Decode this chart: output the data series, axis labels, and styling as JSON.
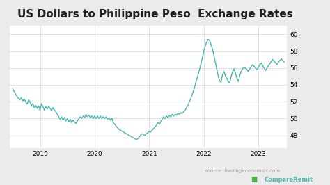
{
  "title": "US Dollars to Philippine Peso  Exchange Rates",
  "title_fontsize": 11,
  "background_color": "#ebebeb",
  "plot_bg_color": "#ffffff",
  "line_color": "#4ab5b0",
  "line_width": 1.0,
  "ylim": [
    46.5,
    61
  ],
  "yticks": [
    48,
    50,
    52,
    54,
    56,
    58,
    60
  ],
  "source_text": "source: tradingeconomics.com",
  "x_labels": [
    "2019",
    "2020",
    "2021",
    "2022",
    "2023"
  ],
  "data_points": [
    53.5,
    53.2,
    52.9,
    52.6,
    52.4,
    52.2,
    52.5,
    52.1,
    52.3,
    52.0,
    51.7,
    52.2,
    52.0,
    51.5,
    51.8,
    51.3,
    51.6,
    51.2,
    51.5,
    51.0,
    51.8,
    51.4,
    51.0,
    51.4,
    51.1,
    51.5,
    51.2,
    50.9,
    51.3,
    51.0,
    50.8,
    50.5,
    50.2,
    49.9,
    50.2,
    49.8,
    50.1,
    49.7,
    50.0,
    49.6,
    49.9,
    49.5,
    49.8,
    49.6,
    49.4,
    49.7,
    50.0,
    50.2,
    50.0,
    50.3,
    50.1,
    50.5,
    50.2,
    50.4,
    50.1,
    50.3,
    50.0,
    50.3,
    50.0,
    50.3,
    50.0,
    50.3,
    50.0,
    50.2,
    50.0,
    50.2,
    49.9,
    50.1,
    49.8,
    50.0,
    49.5,
    49.3,
    49.1,
    48.9,
    48.7,
    48.6,
    48.5,
    48.4,
    48.3,
    48.2,
    48.1,
    48.0,
    47.9,
    47.8,
    47.7,
    47.6,
    47.5,
    47.6,
    47.8,
    48.0,
    48.2,
    48.1,
    48.0,
    48.2,
    48.3,
    48.5,
    48.4,
    48.6,
    48.8,
    49.0,
    49.2,
    49.5,
    49.3,
    49.6,
    49.9,
    50.2,
    50.0,
    50.3,
    50.1,
    50.4,
    50.2,
    50.5,
    50.3,
    50.5,
    50.4,
    50.6,
    50.5,
    50.7,
    50.6,
    50.8,
    51.0,
    51.3,
    51.6,
    52.0,
    52.4,
    52.9,
    53.4,
    54.0,
    54.6,
    55.2,
    55.8,
    56.5,
    57.2,
    58.0,
    58.6,
    59.1,
    59.4,
    59.3,
    58.8,
    58.3,
    57.5,
    56.7,
    55.9,
    55.1,
    54.5,
    54.3,
    55.2,
    55.6,
    55.1,
    54.8,
    54.4,
    54.2,
    55.0,
    55.5,
    55.9,
    55.4,
    54.8,
    54.4,
    55.1,
    55.6,
    55.9,
    56.1,
    56.0,
    55.8,
    55.6,
    55.9,
    56.2,
    56.4,
    56.2,
    56.0,
    55.8,
    56.1,
    56.4,
    56.6,
    56.3,
    56.0,
    55.7,
    56.0,
    56.3,
    56.5,
    56.8,
    57.0,
    56.8,
    56.6,
    56.4,
    56.7,
    56.9,
    57.1,
    56.9,
    56.7
  ]
}
